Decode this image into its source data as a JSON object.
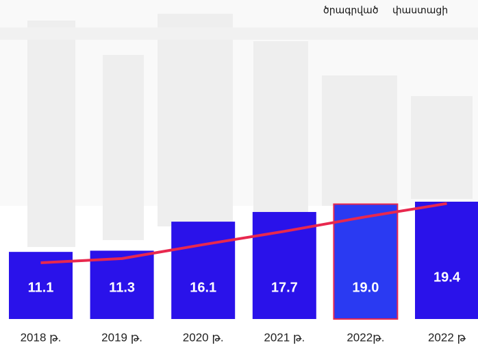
{
  "chart_data": {
    "type": "bar-line",
    "legend_position": "top-right",
    "categories": [
      "2018 թ.",
      "2019 թ.",
      "2020 թ.",
      "2021 թ.",
      "2022թ.",
      "2022 թ"
    ],
    "series": [
      {
        "name": "ծրագրված",
        "type": "line",
        "color": "#e8284e",
        "values": [
          9.3,
          10.0,
          12.3,
          14.5,
          16.9,
          19.1
        ]
      },
      {
        "name": "փաստացի",
        "type": "bar",
        "color": "#2a12ea",
        "values": [
          11.1,
          11.3,
          16.1,
          17.7,
          19.0,
          19.4
        ],
        "value_labels": [
          "11.1",
          "11.3",
          "16.1",
          "17.7",
          "19.0",
          "19.4"
        ],
        "highlight_index": 4,
        "highlight_color": "#2a3af2"
      }
    ]
  }
}
